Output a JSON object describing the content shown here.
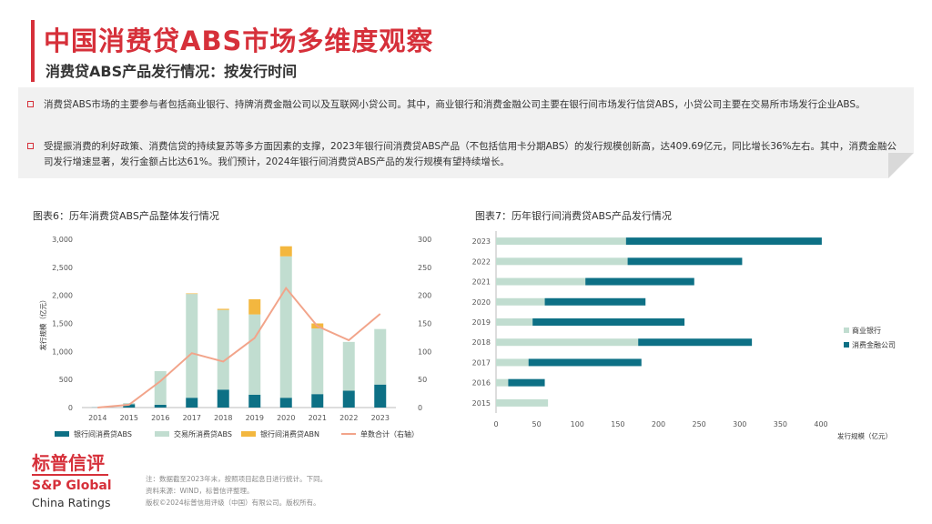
{
  "header": {
    "title": "中国消费贷ABS市场多维度观察",
    "subtitle": "消费贷ABS产品发行情况：按发行时间"
  },
  "summary": {
    "bullet1": "消费贷ABS市场的主要参与者包括商业银行、持牌消费金融公司以及互联网小贷公司。其中，商业银行和消费金融公司主要在银行间市场发行信贷ABS，小贷公司主要在交易所市场发行企业ABS。",
    "bullet2": "受提振消费的利好政策、消费信贷的持续复苏等多方面因素的支撑，2023年银行间消费贷ABS产品（不包括信用卡分期ABS）的发行规模创新高，达409.69亿元，同比增长36%左右。其中，消费金融公司发行增速显著，发行金额占比达61%。我们预计，2024年银行间消费贷ABS产品的发行规模有望持续增长。"
  },
  "colors": {
    "brand_red": "#d6303a",
    "interbank_abs": "#0d7085",
    "exchange_abs": "#c1ddd0",
    "interbank_abn": "#f3b73f",
    "count_line": "#f2a48a",
    "commercial_bank": "#c1ddd0",
    "consumer_finance": "#0d7085"
  },
  "chart_data": [
    {
      "type": "bar",
      "title": "图表6：历年消费贷ABS产品整体发行情况",
      "stacked": true,
      "ylabel": "发行规模（亿元）",
      "xlabel": "",
      "categories": [
        "2014",
        "2015",
        "2016",
        "2017",
        "2018",
        "2019",
        "2020",
        "2021",
        "2022",
        "2023"
      ],
      "series": [
        {
          "name": "银行间消费贷ABS",
          "values": [
            3,
            60,
            50,
            175,
            320,
            230,
            175,
            240,
            300,
            410
          ],
          "color": "#0d7085"
        },
        {
          "name": "交易所消费贷ABS",
          "values": [
            2,
            20,
            600,
            1850,
            1420,
            1430,
            2520,
            1170,
            870,
            990
          ],
          "color": "#c1ddd0"
        },
        {
          "name": "银行间消费贷ABN",
          "values": [
            0,
            0,
            0,
            10,
            20,
            270,
            180,
            90,
            0,
            0
          ],
          "color": "#f3b73f"
        }
      ],
      "line_series": {
        "name": "单数合计（右轴）",
        "values": [
          0,
          5,
          47,
          97,
          82,
          124,
          213,
          145,
          120,
          167
        ],
        "axis": "right",
        "color": "#f2a48a"
      },
      "ylim": [
        0,
        3000
      ],
      "yticks": [
        "0",
        "500",
        "1,000",
        "1,500",
        "2,000",
        "2,500",
        "3,000"
      ],
      "y2lim": [
        0,
        300
      ],
      "y2ticks": [
        "0",
        "50",
        "100",
        "150",
        "200",
        "250",
        "300"
      ],
      "legend": "bottom",
      "grid": false
    },
    {
      "type": "bar",
      "orientation": "horizontal",
      "stacked": true,
      "title": "图表7：历年银行间消费贷ABS产品发行情况",
      "xlabel": "发行规模（亿元）",
      "ylabel": "",
      "categories": [
        "2023",
        "2022",
        "2021",
        "2020",
        "2019",
        "2018",
        "2017",
        "2016",
        "2015"
      ],
      "series": [
        {
          "name": "商业银行",
          "values": [
            160,
            162,
            110,
            60,
            45,
            175,
            40,
            15,
            64
          ],
          "color": "#c1ddd0"
        },
        {
          "name": "消费金融公司",
          "values": [
            241,
            141,
            134,
            124,
            187,
            140,
            139,
            45,
            0
          ],
          "color": "#0d7085"
        }
      ],
      "xlim": [
        0,
        400
      ],
      "xticks": [
        "0",
        "50",
        "100",
        "150",
        "200",
        "250",
        "300",
        "350",
        "400"
      ],
      "legend": "right",
      "grid": false
    }
  ],
  "logo": {
    "cn": "标普信评",
    "en_line1": "S&P Global",
    "en_line2": "China Ratings"
  },
  "footnotes": [
    "注：数据截至2023年末，按照项目起息日进行统计。下同。",
    "资料来源：WIND，标普信评整理。",
    "版权©2024标普信用评级（中国）有限公司。版权所有。"
  ]
}
